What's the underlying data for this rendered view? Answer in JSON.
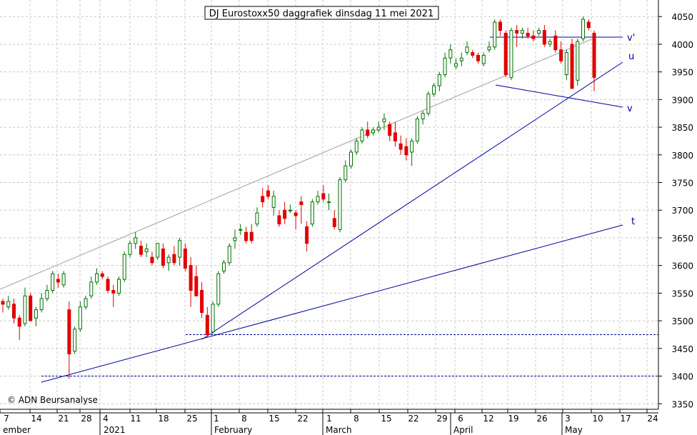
{
  "chart_data": {
    "type": "candlestick",
    "title": "DJ Eurostoxx50 daggrafiek dinsdag 11 mei 2021",
    "copyright": "© ADN Beursanalyse",
    "ylim": [
      3340,
      4080
    ],
    "y_ticks": [
      3350,
      3400,
      3450,
      3500,
      3550,
      3600,
      3650,
      3700,
      3750,
      3800,
      3850,
      3900,
      3950,
      4000,
      4050
    ],
    "grid": true,
    "x_day_labels": [
      "7",
      "14",
      "21",
      "28",
      "4",
      "11",
      "18",
      "25",
      "1",
      "8",
      "15",
      "22",
      "1",
      "8",
      "15",
      "22",
      "29",
      "6",
      "12",
      "19",
      "26",
      "3",
      "10",
      "17",
      "24"
    ],
    "x_month_labels": [
      "ember",
      "2021",
      "February",
      "March",
      "April",
      "May"
    ],
    "up_color": "#007000",
    "down_color": "#e00000",
    "line_color": "#0000a0",
    "channel_color": "#a0a0a0",
    "line_labels": [
      "v'",
      "u",
      "v",
      "t"
    ],
    "horizontal_levels": [
      3400,
      3475
    ],
    "candles": [
      [
        3535,
        3540,
        3515,
        3530
      ],
      [
        3525,
        3545,
        3520,
        3535
      ],
      [
        3530,
        3540,
        3495,
        3505
      ],
      [
        3505,
        3510,
        3465,
        3490
      ],
      [
        3495,
        3560,
        3490,
        3545
      ],
      [
        3545,
        3550,
        3500,
        3500
      ],
      [
        3505,
        3525,
        3490,
        3520
      ],
      [
        3520,
        3550,
        3515,
        3540
      ],
      [
        3540,
        3565,
        3535,
        3555
      ],
      [
        3555,
        3590,
        3550,
        3585
      ],
      [
        3575,
        3585,
        3560,
        3570
      ],
      [
        3565,
        3590,
        3560,
        3585
      ],
      [
        3520,
        3535,
        3395,
        3440
      ],
      [
        3445,
        3490,
        3440,
        3485
      ],
      [
        3485,
        3535,
        3480,
        3525
      ],
      [
        3525,
        3545,
        3520,
        3540
      ],
      [
        3545,
        3580,
        3540,
        3570
      ],
      [
        3570,
        3595,
        3565,
        3585
      ],
      [
        3585,
        3590,
        3575,
        3580
      ],
      [
        3575,
        3580,
        3550,
        3555
      ],
      [
        3555,
        3565,
        3525,
        3550
      ],
      [
        3550,
        3580,
        3545,
        3575
      ],
      [
        3575,
        3625,
        3570,
        3620
      ],
      [
        3620,
        3645,
        3615,
        3640
      ],
      [
        3640,
        3660,
        3630,
        3650
      ],
      [
        3635,
        3645,
        3615,
        3620
      ],
      [
        3625,
        3640,
        3615,
        3630
      ],
      [
        3615,
        3625,
        3600,
        3605
      ],
      [
        3615,
        3640,
        3610,
        3640
      ],
      [
        3630,
        3640,
        3595,
        3600
      ],
      [
        3605,
        3620,
        3590,
        3615
      ],
      [
        3620,
        3635,
        3600,
        3605
      ],
      [
        3615,
        3650,
        3600,
        3645
      ],
      [
        3630,
        3640,
        3590,
        3595
      ],
      [
        3600,
        3615,
        3525,
        3555
      ],
      [
        3580,
        3600,
        3545,
        3545
      ],
      [
        3555,
        3570,
        3505,
        3515
      ],
      [
        3510,
        3525,
        3470,
        3475
      ],
      [
        3480,
        3535,
        3475,
        3530
      ],
      [
        3530,
        3590,
        3525,
        3585
      ],
      [
        3590,
        3610,
        3585,
        3605
      ],
      [
        3605,
        3640,
        3600,
        3635
      ],
      [
        3645,
        3665,
        3630,
        3650
      ],
      [
        3665,
        3675,
        3655,
        3665
      ],
      [
        3660,
        3670,
        3640,
        3645
      ],
      [
        3660,
        3675,
        3640,
        3645
      ],
      [
        3675,
        3705,
        3670,
        3695
      ],
      [
        3725,
        3740,
        3705,
        3715
      ],
      [
        3735,
        3745,
        3720,
        3725
      ],
      [
        3705,
        3735,
        3690,
        3725
      ],
      [
        3690,
        3700,
        3670,
        3675
      ],
      [
        3700,
        3715,
        3675,
        3685
      ],
      [
        3700,
        3710,
        3695,
        3700
      ],
      [
        3695,
        3700,
        3665,
        3690
      ],
      [
        3715,
        3725,
        3675,
        3710
      ],
      [
        3670,
        3680,
        3625,
        3640
      ],
      [
        3675,
        3720,
        3670,
        3715
      ],
      [
        3715,
        3735,
        3710,
        3725
      ],
      [
        3730,
        3745,
        3715,
        3720
      ],
      [
        3715,
        3730,
        3700,
        3715
      ],
      [
        3685,
        3700,
        3665,
        3670
      ],
      [
        3665,
        3760,
        3660,
        3755
      ],
      [
        3755,
        3790,
        3750,
        3780
      ],
      [
        3780,
        3810,
        3775,
        3805
      ],
      [
        3805,
        3830,
        3800,
        3825
      ],
      [
        3825,
        3850,
        3820,
        3845
      ],
      [
        3845,
        3860,
        3830,
        3835
      ],
      [
        3840,
        3850,
        3835,
        3845
      ],
      [
        3845,
        3860,
        3840,
        3850
      ],
      [
        3860,
        3875,
        3845,
        3865
      ],
      [
        3855,
        3860,
        3825,
        3835
      ],
      [
        3840,
        3860,
        3815,
        3825
      ],
      [
        3820,
        3835,
        3800,
        3810
      ],
      [
        3815,
        3830,
        3790,
        3800
      ],
      [
        3805,
        3830,
        3780,
        3825
      ],
      [
        3825,
        3870,
        3820,
        3865
      ],
      [
        3865,
        3880,
        3855,
        3875
      ],
      [
        3875,
        3915,
        3870,
        3910
      ],
      [
        3910,
        3930,
        3905,
        3925
      ],
      [
        3925,
        3950,
        3915,
        3945
      ],
      [
        3945,
        3985,
        3940,
        3975
      ],
      [
        3975,
        4000,
        3965,
        3990
      ],
      [
        3960,
        3975,
        3955,
        3965
      ],
      [
        3970,
        3985,
        3960,
        3975
      ],
      [
        3985,
        4005,
        3980,
        3995
      ],
      [
        3985,
        3990,
        3975,
        3980
      ],
      [
        3980,
        3985,
        3965,
        3970
      ],
      [
        3965,
        3985,
        3960,
        3980
      ],
      [
        3990,
        4005,
        3985,
        3995
      ],
      [
        3995,
        4045,
        3990,
        4040
      ],
      [
        4040,
        4045,
        4015,
        4025
      ],
      [
        4020,
        4025,
        3940,
        3945
      ],
      [
        3940,
        4030,
        3935,
        4025
      ],
      [
        4025,
        4035,
        3995,
        4020
      ],
      [
        4020,
        4030,
        4010,
        4025
      ],
      [
        4020,
        4030,
        4010,
        4015
      ],
      [
        4015,
        4025,
        4005,
        4010
      ],
      [
        4020,
        4030,
        4015,
        4025
      ],
      [
        4025,
        4035,
        3995,
        4000
      ],
      [
        4000,
        4010,
        3995,
        4005
      ],
      [
        4015,
        4025,
        3985,
        3990
      ],
      [
        3990,
        4005,
        3965,
        3970
      ],
      [
        3945,
        3990,
        3935,
        3985
      ],
      [
        4000,
        4010,
        3920,
        3920
      ],
      [
        3935,
        4010,
        3925,
        4005
      ],
      [
        4010,
        4050,
        4005,
        4045
      ],
      [
        4040,
        4045,
        4025,
        4030
      ],
      [
        4020,
        4025,
        3915,
        3940
      ]
    ]
  }
}
